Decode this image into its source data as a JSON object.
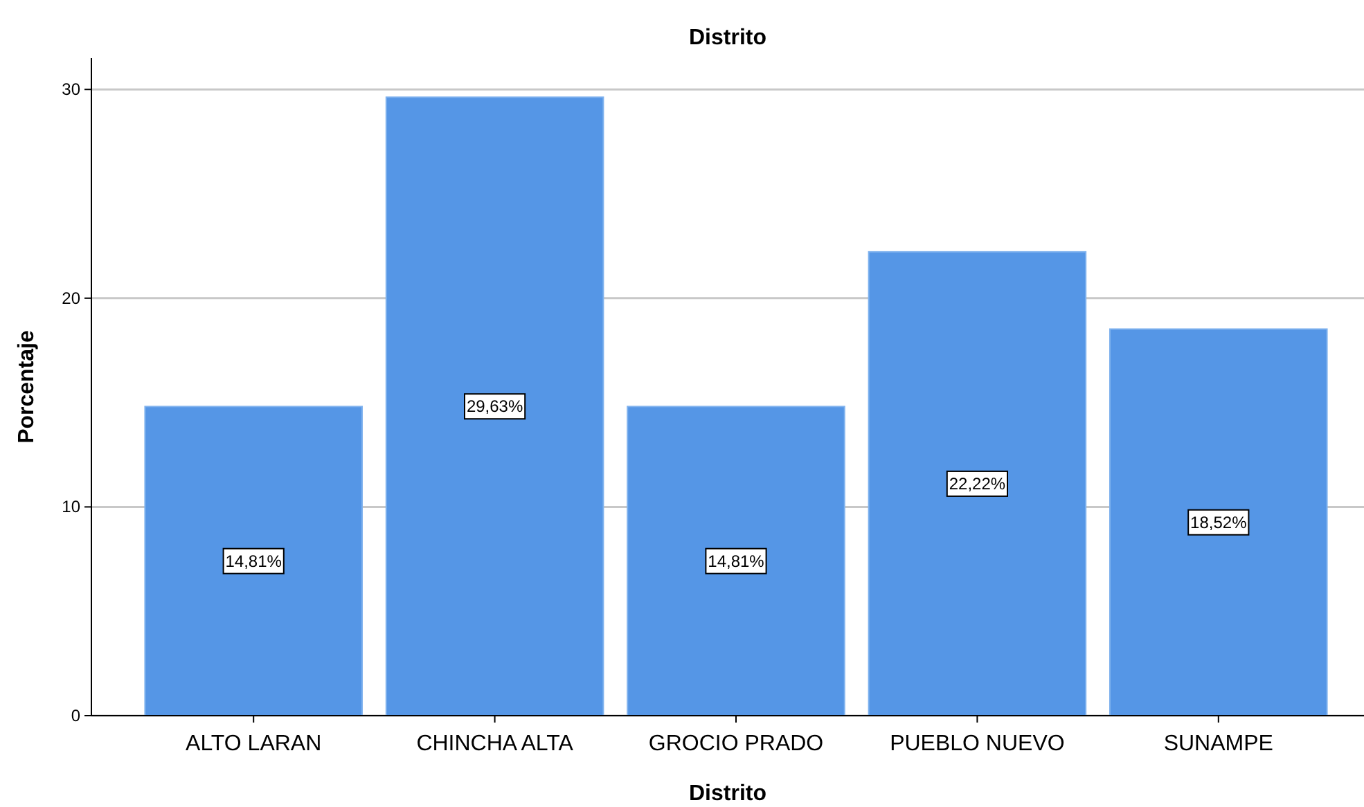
{
  "chart_data": {
    "type": "bar",
    "title": "Distrito",
    "xlabel": "Distrito",
    "ylabel": "Porcentaje",
    "categories": [
      "ALTO LARAN",
      "CHINCHA ALTA",
      "GROCIO PRADO",
      "PUEBLO NUEVO",
      "SUNAMPE"
    ],
    "values": [
      14.81,
      29.63,
      14.81,
      22.22,
      18.52
    ],
    "value_labels": [
      "14,81%",
      "29,63%",
      "14,81%",
      "22,22%",
      "18,52%"
    ],
    "color": "#5596e6",
    "ylim": [
      0,
      31.5
    ],
    "yticks": [
      0,
      10,
      20,
      30
    ],
    "grid": "y"
  }
}
